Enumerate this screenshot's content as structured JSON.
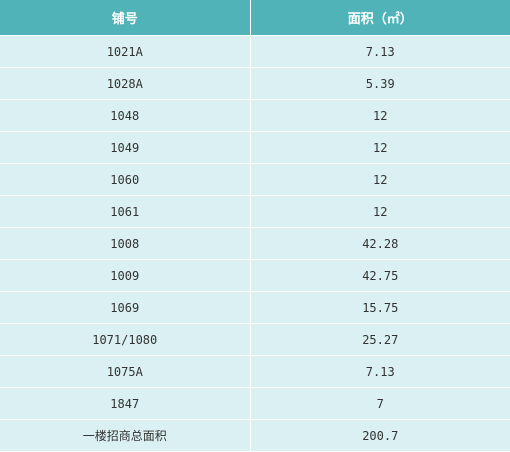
{
  "colors": {
    "header_bg": "#4fb3b8",
    "cell_bg": "#daf0f2",
    "header_text": "#ffffff",
    "cell_text": "#333333"
  },
  "table": {
    "headers": [
      "铺号",
      "面积（㎡）"
    ],
    "rows": [
      [
        "1021A",
        "7.13"
      ],
      [
        "1028A",
        "5.39"
      ],
      [
        "1048",
        "12"
      ],
      [
        "1049",
        "12"
      ],
      [
        "1060",
        "12"
      ],
      [
        "1061",
        "12"
      ],
      [
        "1008",
        "42.28"
      ],
      [
        "1009",
        "42.75"
      ],
      [
        "1069",
        "15.75"
      ],
      [
        "1071/1080",
        "25.27"
      ],
      [
        "1075A",
        "7.13"
      ],
      [
        "1847",
        "7"
      ],
      [
        "一楼招商总面积",
        "200.7"
      ]
    ]
  }
}
